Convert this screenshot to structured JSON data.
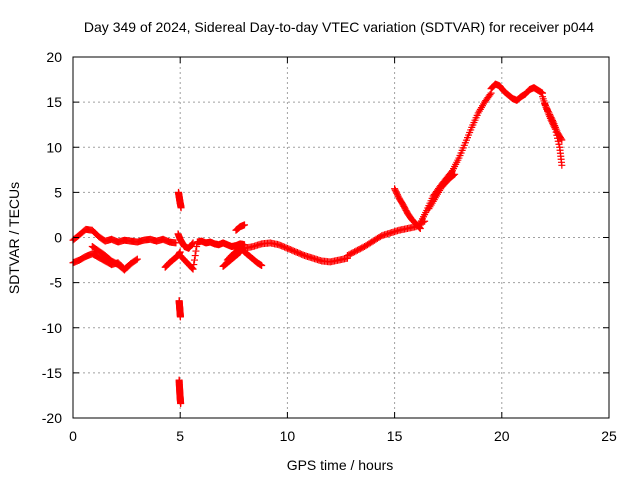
{
  "chart_data": {
    "type": "scatter",
    "title": "Day 349 of 2024, Sidereal Day-to-day VTEC variation (SDTVAR) for receiver p044",
    "xlabel": "GPS time / hours",
    "ylabel": "SDTVAR / TECUs",
    "xlim": [
      0,
      25
    ],
    "ylim": [
      -20,
      20
    ],
    "xticks": [
      0,
      5,
      10,
      15,
      20,
      25
    ],
    "yticks": [
      -20,
      -15,
      -10,
      -5,
      0,
      5,
      10,
      15,
      20
    ],
    "grid": true,
    "marker": "+",
    "marker_color": "#ff0000",
    "series": [
      {
        "name": "SDTVAR",
        "segments": [
          {
            "x": [
              0.0,
              0.3,
              0.6,
              0.9,
              1.2,
              1.5,
              1.8,
              2.1,
              2.4,
              2.7,
              3.0,
              3.3,
              3.6,
              3.9,
              4.2,
              4.5,
              4.8
            ],
            "y": [
              -0.3,
              0.3,
              0.9,
              0.8,
              0.1,
              -0.4,
              -0.2,
              -0.5,
              -0.3,
              -0.4,
              -0.5,
              -0.3,
              -0.2,
              -0.4,
              -0.2,
              -0.5,
              -0.6
            ]
          },
          {
            "x": [
              0.0,
              0.3,
              0.6,
              0.9,
              1.2,
              1.5,
              1.8,
              2.1,
              2.4,
              2.7,
              3.0
            ],
            "y": [
              -2.8,
              -2.5,
              -2.1,
              -1.8,
              -2.2,
              -2.6,
              -3.0,
              -2.8,
              -3.5,
              -2.9,
              -2.4
            ]
          },
          {
            "x": [
              0.9,
              1.2,
              1.5,
              1.8,
              2.1,
              2.4,
              2.7
            ],
            "y": [
              -1.0,
              -1.5,
              -2.0,
              -2.6,
              -3.0,
              -3.6,
              -2.9
            ]
          },
          {
            "x": [
              4.3,
              4.5,
              4.7,
              4.9,
              5.0
            ],
            "y": [
              -3.3,
              -2.8,
              -2.4,
              -2.0,
              -1.6
            ]
          },
          {
            "x": [
              4.92,
              4.94,
              4.96,
              4.98,
              5.0,
              5.02,
              5.04
            ],
            "y": [
              5.0,
              4.7,
              4.4,
              4.1,
              3.8,
              3.6,
              3.3
            ]
          },
          {
            "x": [
              4.95,
              4.96,
              4.97,
              4.98,
              4.99,
              5.0,
              5.01
            ],
            "y": [
              -7.0,
              -7.3,
              -7.6,
              -7.9,
              -8.2,
              -8.5,
              -8.8
            ]
          },
          {
            "x": [
              4.95,
              4.96,
              4.97,
              4.98,
              4.99,
              5.0,
              5.01,
              5.02
            ],
            "y": [
              -15.8,
              -16.3,
              -16.7,
              -17.1,
              -17.5,
              -17.8,
              -18.1,
              -18.4
            ]
          },
          {
            "x": [
              4.9,
              5.0,
              5.1,
              5.2,
              5.4,
              5.6
            ],
            "y": [
              0.4,
              -0.2,
              -0.6,
              -1.0,
              -1.2,
              -0.6
            ]
          },
          {
            "x": [
              5.0,
              5.2,
              5.4,
              5.6,
              5.8,
              6.0,
              6.2,
              6.4,
              6.6,
              6.8,
              7.0,
              7.2,
              7.4,
              7.6,
              7.8,
              8.0
            ],
            "y": [
              -2.0,
              -2.5,
              -3.0,
              -3.5,
              -0.5,
              -0.4,
              -0.6,
              -0.5,
              -0.7,
              -0.8,
              -0.6,
              -0.8,
              -1.0,
              -0.9,
              -0.7,
              -0.8
            ]
          },
          {
            "x": [
              7.2,
              7.4,
              7.6,
              7.8,
              8.0,
              8.2,
              8.4,
              8.6,
              8.8
            ],
            "y": [
              -2.5,
              -2.0,
              -1.6,
              -1.1,
              -1.6,
              -2.0,
              -2.4,
              -2.8,
              -3.1
            ]
          },
          {
            "x": [
              7.0,
              7.2,
              7.4,
              7.6,
              7.8
            ],
            "y": [
              -3.2,
              -2.8,
              -2.4,
              -2.0,
              -1.6
            ]
          },
          {
            "x": [
              7.6,
              7.8,
              8.0
            ],
            "y": [
              0.8,
              1.2,
              1.4
            ]
          },
          {
            "x": [
              8.0,
              8.4,
              8.8,
              9.2,
              9.6,
              10.0,
              10.4,
              10.8,
              11.2,
              11.6,
              12.0,
              12.4,
              12.8
            ],
            "y": [
              -1.2,
              -1.0,
              -0.7,
              -0.6,
              -0.8,
              -1.2,
              -1.6,
              -2.0,
              -2.3,
              -2.6,
              -2.7,
              -2.5,
              -2.3
            ]
          },
          {
            "x": [
              12.8,
              13.2,
              13.6,
              14.0,
              14.4,
              14.8,
              15.2,
              15.6,
              16.0,
              16.4
            ],
            "y": [
              -2.0,
              -1.5,
              -1.0,
              -0.4,
              0.2,
              0.5,
              0.8,
              1.0,
              1.2,
              1.8
            ]
          },
          {
            "x": [
              15.0,
              15.2,
              15.4,
              15.6,
              15.8,
              16.0,
              16.2
            ],
            "y": [
              5.4,
              4.4,
              3.6,
              2.7,
              2.0,
              1.5,
              1.0
            ]
          },
          {
            "x": [
              16.2,
              16.5,
              16.8,
              17.1,
              17.4,
              17.7,
              18.0,
              18.3,
              18.6,
              18.9,
              19.2,
              19.5
            ],
            "y": [
              1.6,
              3.0,
              4.6,
              5.6,
              6.5,
              7.4,
              8.8,
              10.5,
              12.2,
              13.8,
              15.0,
              16.0
            ]
          },
          {
            "x": [
              16.6,
              16.9,
              17.2,
              17.5,
              17.8
            ],
            "y": [
              3.2,
              4.4,
              5.6,
              6.4,
              7.0
            ]
          },
          {
            "x": [
              19.5,
              19.7,
              19.9,
              20.1,
              20.3,
              20.5,
              20.7,
              20.9,
              21.1,
              21.3,
              21.5,
              21.7,
              21.9
            ],
            "y": [
              16.5,
              17.0,
              16.8,
              16.2,
              15.8,
              15.4,
              15.2,
              15.6,
              15.9,
              16.4,
              16.6,
              16.3,
              16.0
            ]
          },
          {
            "x": [
              21.9,
              22.1,
              22.3,
              22.5,
              22.7,
              22.8
            ],
            "y": [
              15.6,
              14.2,
              13.0,
              12.0,
              10.0,
              8.0
            ]
          },
          {
            "x": [
              22.0,
              22.2,
              22.4,
              22.6,
              22.8
            ],
            "y": [
              14.8,
              13.8,
              12.8,
              11.6,
              10.8
            ]
          }
        ]
      }
    ]
  }
}
